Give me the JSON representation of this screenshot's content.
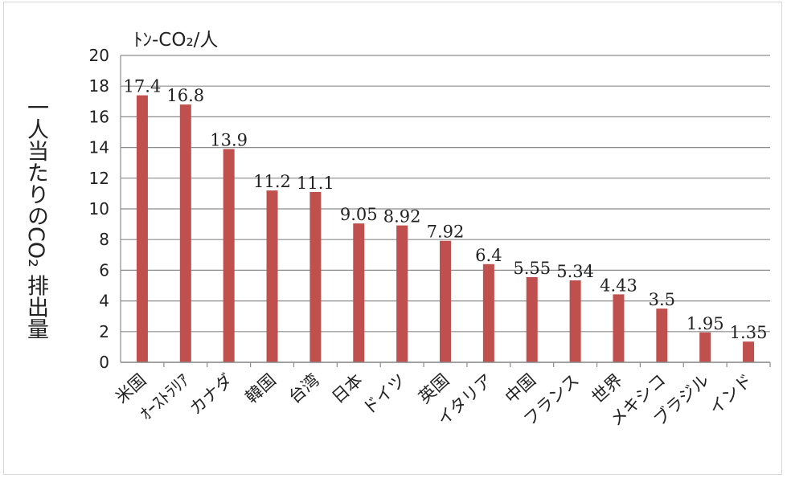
{
  "chart_data": {
    "type": "bar",
    "unit_label": "ﾄﾝ-CO₂/人",
    "ylabel": "一人当たりのCO₂ 排出量",
    "xlabel": "",
    "ylim": [
      0,
      20
    ],
    "yticks": [
      "0",
      "2",
      "4",
      "6",
      "8",
      "10",
      "12",
      "14",
      "16",
      "18",
      "20"
    ],
    "grid": true,
    "legend": "none",
    "bar_color": "#c0504d",
    "categories": [
      "米国",
      "ｵｰｽﾄﾗﾘｱ",
      "カナダ",
      "韓国",
      "台湾",
      "日本",
      "ドイツ",
      "英国",
      "イタリア",
      "中国",
      "フランス",
      "世界",
      "メキシコ",
      "ブラジル",
      "インド"
    ],
    "values": [
      17.4,
      16.8,
      13.9,
      11.2,
      11.1,
      9.05,
      8.92,
      7.92,
      6.4,
      5.55,
      5.34,
      4.43,
      3.5,
      1.95,
      1.35
    ],
    "value_labels": [
      "17.4",
      "16.8",
      "13.9",
      "11.2",
      "11.1",
      "9.05",
      "8.92",
      "7.92",
      "6.4",
      "5.55",
      "5.34",
      "4.43",
      "3.5",
      "1.95",
      "1.35"
    ]
  }
}
